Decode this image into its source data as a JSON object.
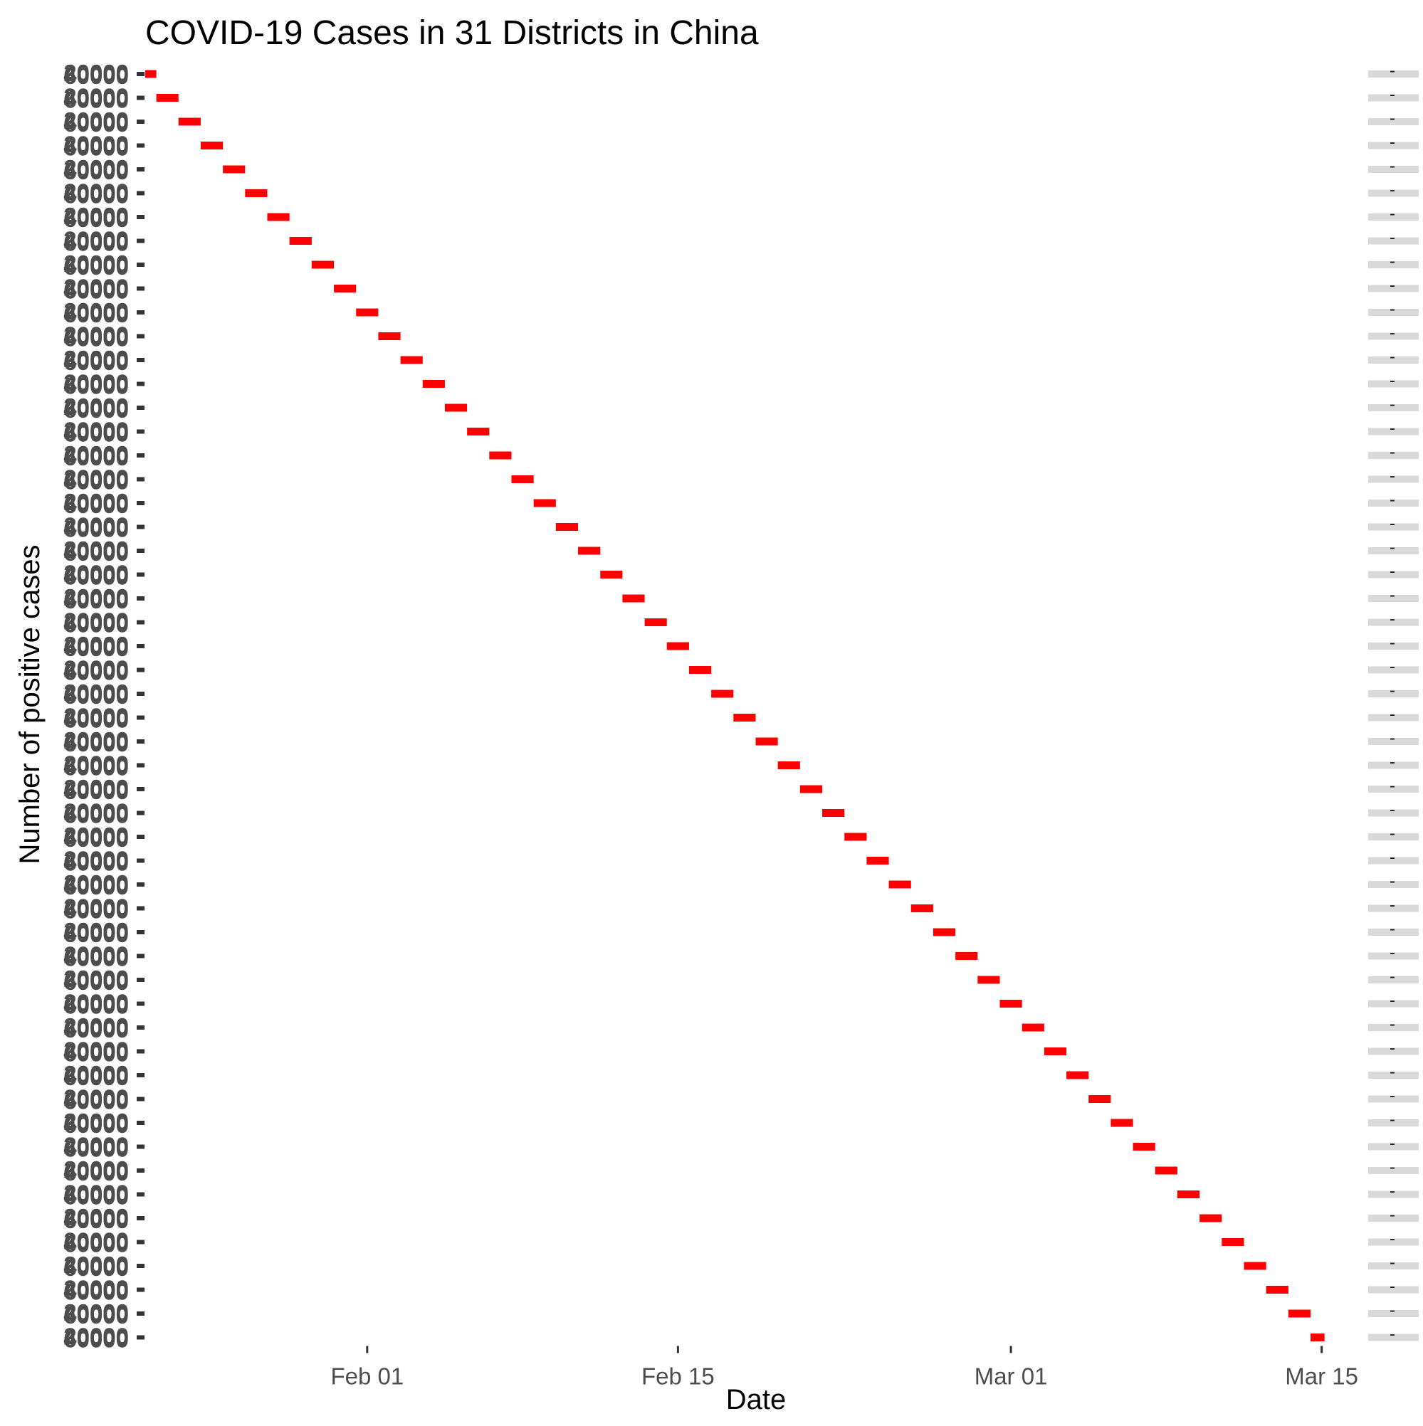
{
  "chart_data": {
    "type": "line",
    "title": "COVID-19 Cases in 31 Districts in China",
    "xlabel": "Date",
    "ylabel": "Number of positive cases",
    "x_ticks": [
      "Feb 01",
      "Feb 15",
      "Mar 01",
      "Mar 15"
    ],
    "x_tick_dates": [
      "2020-02-01",
      "2020-02-15",
      "2020-03-01",
      "2020-03-15"
    ],
    "xlim": [
      "2020-01-22",
      "2020-03-17"
    ],
    "y_tick_labels_overprinted": [
      "20000",
      "40000",
      "60000"
    ],
    "panel_count": 54,
    "panel_date_start": "2020-01-22",
    "panel_date_step_days": 1,
    "strip_label": "-",
    "series_color": "#ff0000",
    "grid": false,
    "legend": "none",
    "note": ""
  }
}
